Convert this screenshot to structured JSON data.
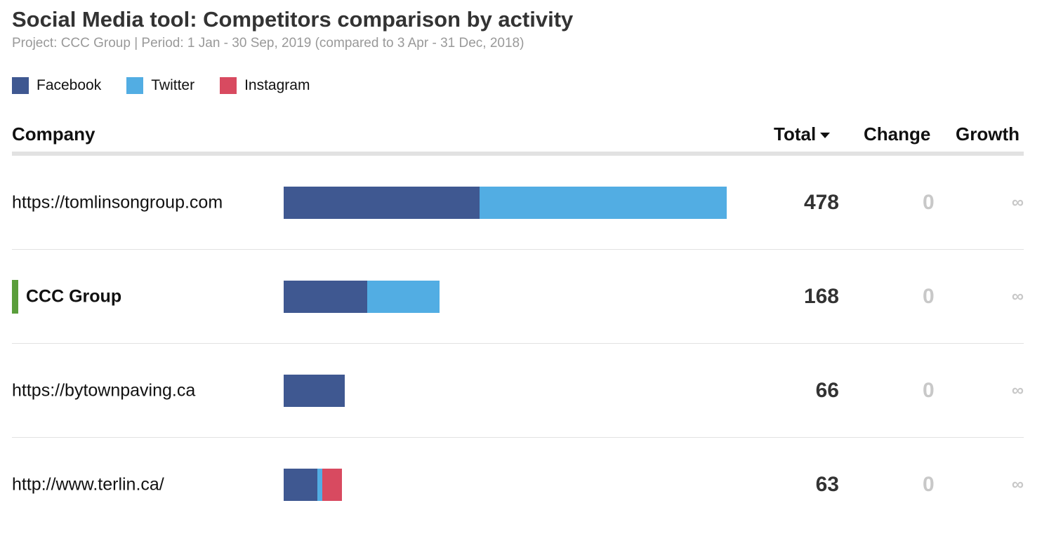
{
  "header": {
    "title": "Social Media tool: Competitors comparison by activity",
    "subtitle": "Project: CCC Group | Period: 1 Jan - 30 Sep, 2019 (compared to 3 Apr - 31 Dec, 2018)"
  },
  "legend": [
    {
      "label": "Facebook",
      "color": "#3f5891"
    },
    {
      "label": "Twitter",
      "color": "#52ade3"
    },
    {
      "label": "Instagram",
      "color": "#d84a60"
    }
  ],
  "columns": {
    "company": "Company",
    "total": "Total",
    "change": "Change",
    "growth": "Growth",
    "sort_icon": "caret-down-icon"
  },
  "chart_data": {
    "type": "bar",
    "orientation": "horizontal",
    "stacked": true,
    "categories": [
      "https://tomlinsongroup.com",
      "CCC Group",
      "https://bytownpaving.ca",
      "http://www.terlin.ca/"
    ],
    "series": [
      {
        "name": "Facebook",
        "color": "#3f5891",
        "values": [
          211,
          90,
          66,
          36
        ]
      },
      {
        "name": "Twitter",
        "color": "#52ade3",
        "values": [
          267,
          78,
          0,
          6
        ]
      },
      {
        "name": "Instagram",
        "color": "#d84a60",
        "values": [
          0,
          0,
          0,
          21
        ]
      }
    ],
    "xlim": [
      0,
      478
    ]
  },
  "rows": [
    {
      "company": "https://tomlinsongroup.com",
      "highlight": false,
      "total": "478",
      "change": "0",
      "growth": "∞"
    },
    {
      "company": "CCC Group",
      "highlight": true,
      "total": "168",
      "change": "0",
      "growth": "∞"
    },
    {
      "company": "https://bytownpaving.ca",
      "highlight": false,
      "total": "66",
      "change": "0",
      "growth": "∞"
    },
    {
      "company": "http://www.terlin.ca/",
      "highlight": false,
      "total": "63",
      "change": "0",
      "growth": "∞"
    }
  ]
}
